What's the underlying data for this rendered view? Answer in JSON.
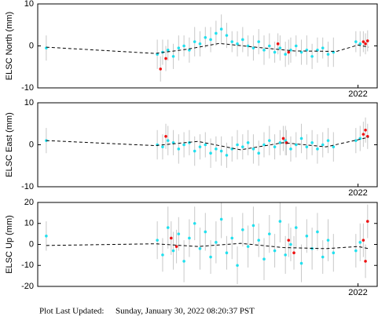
{
  "chart_data": [
    {
      "type": "scatter",
      "ylabel": "ELSC North (mm)",
      "xlim": [
        2019.0,
        2022.18
      ],
      "xticks": [
        2022
      ],
      "ylim": [
        -10,
        10
      ],
      "yticks": [
        -10,
        0,
        10
      ],
      "series": [
        {
          "color": "#22e0ee",
          "x": [
            2019.08,
            2020.12,
            2020.17,
            2020.22,
            2020.27,
            2020.32,
            2020.37,
            2020.42,
            2020.47,
            2020.52,
            2020.57,
            2020.62,
            2020.67,
            2020.72,
            2020.77,
            2020.82,
            2020.87,
            2020.92,
            2020.97,
            2021.02,
            2021.07,
            2021.12,
            2021.17,
            2021.22,
            2021.27,
            2021.32,
            2021.37,
            2021.42,
            2021.47,
            2021.52,
            2021.57,
            2021.62,
            2021.67,
            2021.72,
            2021.77,
            2021.98,
            2022.02
          ],
          "values": [
            -0.5,
            -2,
            -1.5,
            -1,
            -2.5,
            -0.5,
            0,
            -1,
            1,
            0.5,
            2,
            1.5,
            3,
            4,
            2.5,
            1,
            0.5,
            1.5,
            0,
            -0.5,
            1,
            -1,
            0,
            -1.5,
            -0.5,
            -2,
            -1,
            0,
            -1.5,
            -1,
            -2.5,
            -1,
            -0.5,
            -2,
            -1.5,
            1,
            0.5
          ],
          "errors": [
            3,
            3.5,
            3,
            2.5,
            3,
            3,
            2.5,
            3,
            3.5,
            3,
            2.5,
            3,
            3,
            3.5,
            3,
            2.5,
            3,
            3,
            2.5,
            3,
            3,
            3.5,
            3,
            2.5,
            3,
            3,
            3,
            2.5,
            3,
            3.5,
            3,
            3,
            2.5,
            3,
            3.5,
            2.5,
            3
          ]
        },
        {
          "color": "#ee1111",
          "x": [
            2020.15,
            2020.2,
            2021.25,
            2021.35,
            2022.05,
            2022.07,
            2022.09
          ],
          "values": [
            -5.5,
            -3,
            0.5,
            -1.5,
            1,
            0.5,
            1.2
          ],
          "errors": [
            3,
            3,
            2.5,
            3,
            2.5,
            2.5,
            2.5
          ]
        }
      ],
      "trend": {
        "color": "#000000",
        "x": [
          2019.08,
          2020.1,
          2020.4,
          2020.7,
          2021.0,
          2021.4,
          2021.8,
          2022.0,
          2022.1
        ],
        "values": [
          -0.3,
          -1.8,
          -0.8,
          0.6,
          -0.2,
          -1.2,
          -1.3,
          0.2,
          -0.3
        ]
      }
    },
    {
      "type": "scatter",
      "ylabel": "ELSC East (mm)",
      "xlim": [
        2019.0,
        2022.18
      ],
      "xticks": [
        2022
      ],
      "ylim": [
        -10,
        10
      ],
      "yticks": [
        -10,
        0,
        10
      ],
      "series": [
        {
          "color": "#22e0ee",
          "x": [
            2019.08,
            2020.12,
            2020.17,
            2020.22,
            2020.27,
            2020.32,
            2020.37,
            2020.42,
            2020.47,
            2020.52,
            2020.57,
            2020.62,
            2020.67,
            2020.72,
            2020.77,
            2020.82,
            2020.87,
            2020.92,
            2020.97,
            2021.02,
            2021.07,
            2021.12,
            2021.17,
            2021.22,
            2021.27,
            2021.32,
            2021.37,
            2021.42,
            2021.47,
            2021.52,
            2021.57,
            2021.62,
            2021.67,
            2021.72,
            2021.77,
            2021.98,
            2022.02
          ],
          "values": [
            1,
            0,
            -0.5,
            1,
            0.5,
            -1,
            0,
            0.5,
            -1.5,
            -0.5,
            0,
            -2,
            -1,
            -1.5,
            -2.5,
            -1,
            0,
            -0.5,
            0.5,
            -1,
            -2,
            0,
            1,
            -0.5,
            0.5,
            1,
            -1,
            0,
            1.5,
            -0.5,
            0.5,
            -1,
            0,
            1,
            -0.5,
            1,
            1.5
          ],
          "errors": [
            3,
            3.5,
            3,
            3.5,
            3,
            3.5,
            3,
            3,
            3.5,
            3,
            3,
            3.5,
            3,
            3.5,
            3,
            3,
            3.5,
            3,
            3,
            3.5,
            3,
            3,
            3.5,
            3,
            3,
            3.5,
            3,
            3,
            3.5,
            3,
            3,
            3.5,
            3,
            3,
            3.5,
            3,
            3
          ]
        },
        {
          "color": "#ee1111",
          "x": [
            2020.2,
            2021.3,
            2021.33,
            2022.05,
            2022.07,
            2022.09
          ],
          "values": [
            2,
            1.5,
            0.5,
            2.5,
            3.5,
            2
          ],
          "errors": [
            3,
            3,
            3,
            3,
            3,
            3
          ]
        }
      ],
      "trend": {
        "color": "#000000",
        "x": [
          2019.08,
          2020.1,
          2020.5,
          2020.9,
          2021.3,
          2021.7,
          2022.0,
          2022.1
        ],
        "values": [
          1,
          -0.2,
          0.8,
          -1.2,
          0.5,
          -0.5,
          1.2,
          1.8
        ]
      }
    },
    {
      "type": "scatter",
      "ylabel": "ELSC Up (mm)",
      "xlim": [
        2019.0,
        2022.18
      ],
      "xticks": [
        2022
      ],
      "ylim": [
        -20,
        20
      ],
      "yticks": [
        -20,
        -10,
        0,
        10,
        20
      ],
      "series": [
        {
          "color": "#22e0ee",
          "x": [
            2019.08,
            2020.12,
            2020.17,
            2020.22,
            2020.27,
            2020.32,
            2020.37,
            2020.42,
            2020.47,
            2020.52,
            2020.57,
            2020.62,
            2020.67,
            2020.72,
            2020.77,
            2020.82,
            2020.87,
            2020.92,
            2020.97,
            2021.02,
            2021.07,
            2021.12,
            2021.17,
            2021.22,
            2021.27,
            2021.32,
            2021.37,
            2021.42,
            2021.47,
            2021.52,
            2021.57,
            2021.62,
            2021.67,
            2021.72,
            2021.77,
            2021.98,
            2022.02
          ],
          "values": [
            4,
            2,
            -5,
            8,
            -3,
            5,
            -8,
            3,
            10,
            -2,
            6,
            -6,
            1,
            12,
            -4,
            3,
            -10,
            7,
            -1,
            9,
            2,
            -7,
            5,
            -3,
            11,
            -5,
            0,
            8,
            -9,
            4,
            -2,
            6,
            -6,
            2,
            -4,
            -3,
            1
          ],
          "errors": [
            7,
            9,
            8,
            10,
            9,
            8,
            10,
            9,
            8,
            10,
            9,
            8,
            10,
            9,
            8,
            10,
            9,
            8,
            10,
            9,
            8,
            10,
            9,
            8,
            10,
            9,
            8,
            10,
            9,
            8,
            10,
            9,
            8,
            10,
            9,
            8,
            9
          ]
        },
        {
          "color": "#ee1111",
          "x": [
            2020.25,
            2020.3,
            2021.35,
            2021.4,
            2022.05,
            2022.07,
            2022.09
          ],
          "values": [
            3,
            -1,
            2,
            -4,
            2,
            -8,
            11
          ],
          "errors": [
            8,
            8,
            8,
            8,
            8,
            8,
            8
          ]
        }
      ],
      "trend": {
        "color": "#000000",
        "x": [
          2019.08,
          2020.1,
          2020.5,
          2020.9,
          2021.3,
          2021.7,
          2022.0,
          2022.1
        ],
        "values": [
          -0.5,
          0.3,
          -1,
          0.5,
          -1.5,
          -2,
          -1,
          -2
        ]
      }
    }
  ],
  "footer": {
    "label": "Plot Last Updated:",
    "timestamp": "Sunday, January 30, 2022 08:20:37 PST"
  }
}
